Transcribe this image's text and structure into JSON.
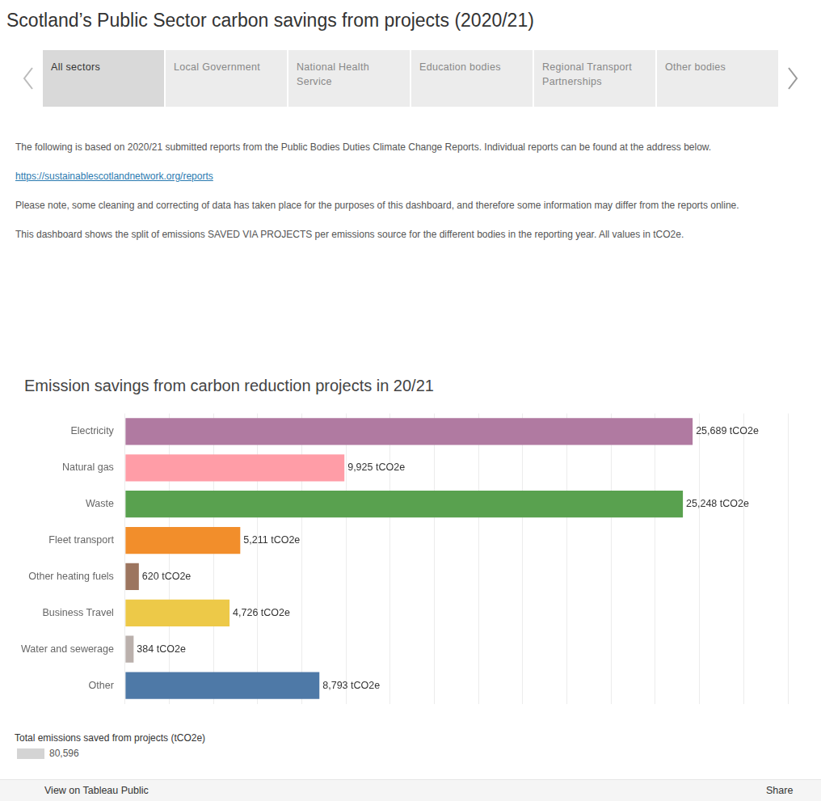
{
  "dashboard": {
    "title": "Scotland’s Public Sector carbon savings from projects (2020/21)",
    "tabs": [
      "All sectors",
      "Local Government",
      "National Health Service",
      "Education bodies",
      "Regional Transport Partnerships",
      "Other bodies"
    ],
    "paragraphs": [
      "The following is based on 2020/21 submitted reports from the Public Bodies Duties Climate Change Reports. Individual reports can be found at the address below.",
      "Please note, some cleaning and correcting of data has taken place for the purposes of this dashboard, and therefore some information may differ from the reports online.",
      "This dashboard shows the split of emissions SAVED VIA PROJECTS per emissions source for the different bodies in the reporting year. All values in tCO2e."
    ],
    "link": "https://sustainablescotlandnetwork.org/reports",
    "total": {
      "title": "Total emissions saved from projects (tCO2e)",
      "label": "80,596"
    },
    "footer": {
      "link": "View on Tableau Public",
      "share": "Share"
    }
  },
  "chart_data": {
    "type": "bar",
    "orientation": "horizontal",
    "title": "Emission savings from carbon reduction projects in 20/21",
    "categories": [
      "Electricity",
      "Natural gas",
      "Waste",
      "Fleet transport",
      "Other heating fuels",
      "Business Travel",
      "Water and sewerage",
      "Other"
    ],
    "values": [
      25689,
      9925,
      25248,
      5211,
      620,
      4726,
      384,
      8793
    ],
    "value_labels": [
      "25,689 tCO2e",
      "9,925 tCO2e",
      "25,248 tCO2e",
      "5,211 tCO2e",
      "620 tCO2e",
      "4,726 tCO2e",
      "384 tCO2e",
      "8,793 tCO2e"
    ],
    "colors": [
      "#b07aa1",
      "#ff9da7",
      "#59a14f",
      "#f28e2b",
      "#9c755f",
      "#edc948",
      "#bab0ac",
      "#4e79a7"
    ],
    "xlim": [
      0,
      30000
    ],
    "xticks": [
      0,
      2000,
      4000,
      6000,
      8000,
      10000,
      12000,
      14000,
      16000,
      18000,
      20000,
      22000,
      24000,
      26000,
      28000,
      30000
    ],
    "grid": true,
    "data_labels": true,
    "tick_labels": "y"
  }
}
